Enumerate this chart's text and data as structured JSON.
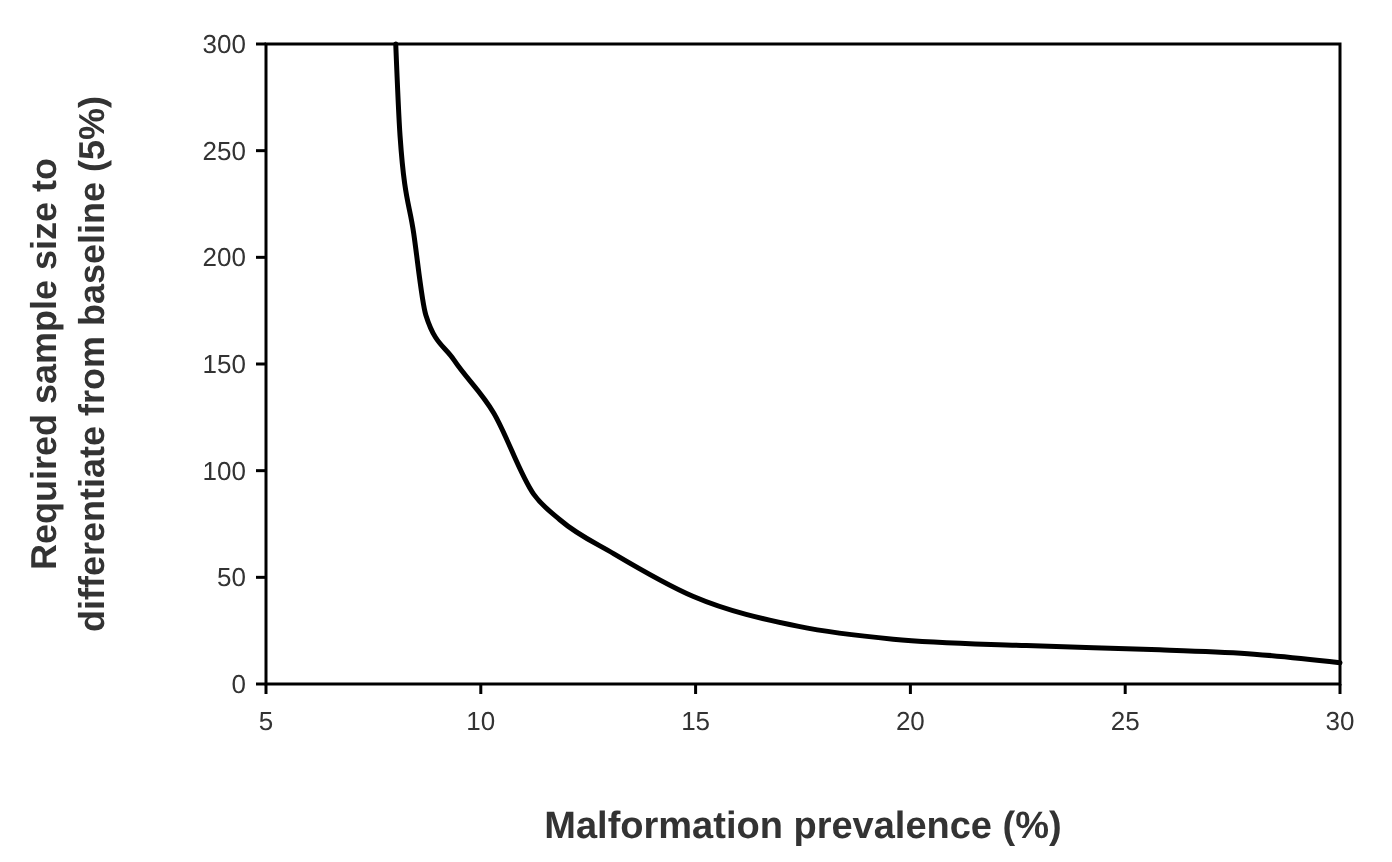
{
  "chart_data": {
    "type": "line",
    "xlabel": "Malformation prevalence (%)",
    "ylabel": "Required sample size to differentiate from baseline (5%)",
    "x": [
      8.02,
      8.12,
      8.44,
      8.72,
      9.37,
      10.3,
      11.23,
      11.84,
      13.1,
      14.95,
      17.4,
      19.6,
      22.7,
      25.8,
      28,
      30
    ],
    "series": [
      {
        "color": "#000000",
        "values": [
          300,
          257,
          211,
          173,
          152,
          127,
          89,
          77,
          61,
          41,
          27,
          21,
          18,
          16,
          14,
          10
        ]
      }
    ],
    "xlim": [
      5,
      30
    ],
    "xticks": [
      5,
      10,
      15,
      20,
      25,
      30
    ],
    "ylim": [
      0,
      300
    ],
    "yticks": [
      0,
      50,
      100,
      150,
      200,
      250,
      300
    ],
    "grid": false,
    "marker": "none",
    "line_style": "solid"
  }
}
